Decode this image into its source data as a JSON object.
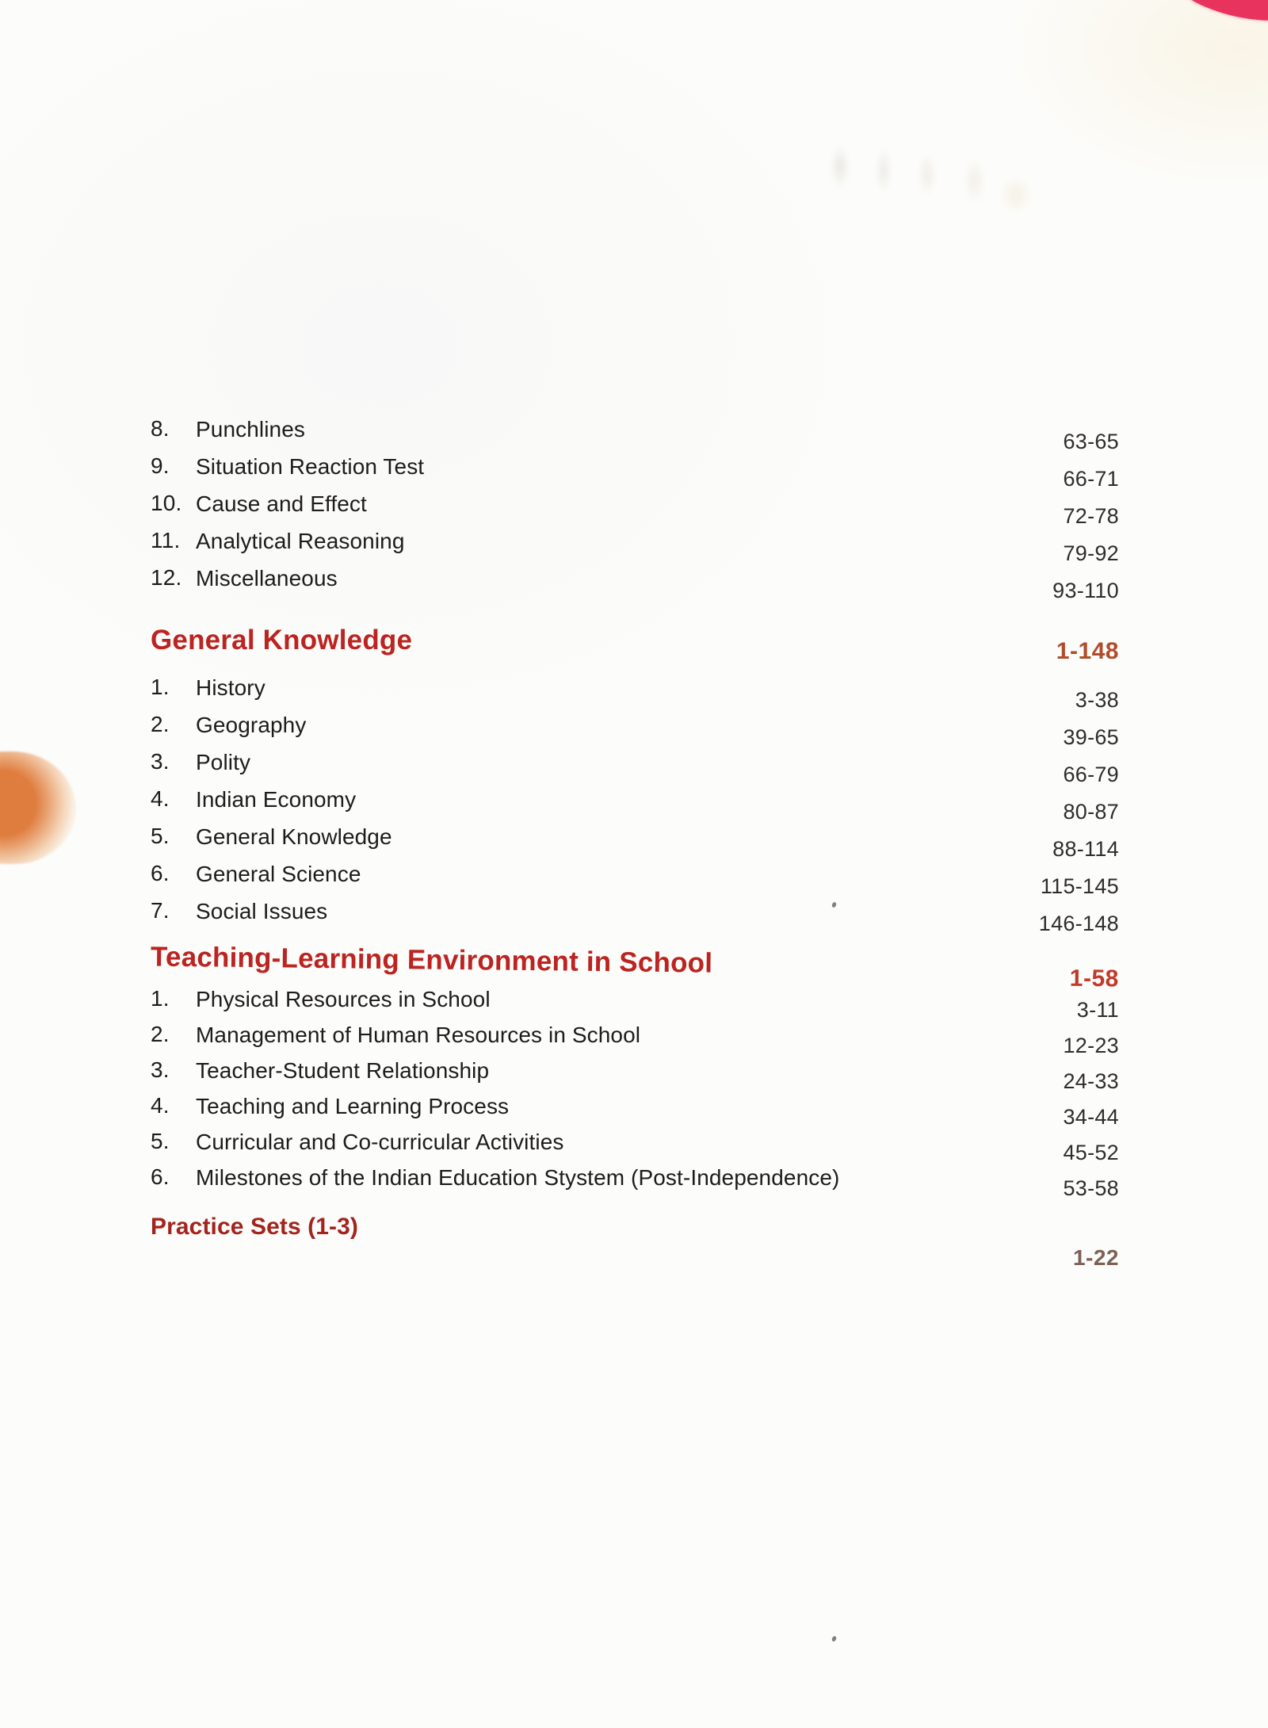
{
  "colors": {
    "paper": "#fcfcfa",
    "entry_text": "#1d1c1a",
    "entry_pages": "#2f2d2a",
    "heading_red": "#bb2420",
    "practice_heading_red": "#a3241d",
    "range_gk": "#b14c2a",
    "range_teaching": "#c03a2b",
    "range_practice": "#7e6156",
    "pink_corner_mark": "#e8335f",
    "orange_stain": "#dd7634"
  },
  "sections": [
    {
      "heading": null,
      "items": [
        {
          "index": "8.",
          "label": "Punchlines",
          "pages": "63-65"
        },
        {
          "index": "9.",
          "label": "Situation Reaction Test",
          "pages": "66-71"
        },
        {
          "index": "10.",
          "label": "Cause and Effect",
          "pages": "72-78"
        },
        {
          "index": "11.",
          "label": "Analytical Reasoning",
          "pages": "79-92"
        },
        {
          "index": "12.",
          "label": "Miscellaneous",
          "pages": "93-110"
        }
      ]
    },
    {
      "heading": {
        "label": "General Knowledge",
        "pages": "1-148"
      },
      "items": [
        {
          "index": "1.",
          "label": "History",
          "pages": "3-38"
        },
        {
          "index": "2.",
          "label": "Geography",
          "pages": "39-65"
        },
        {
          "index": "3.",
          "label": "Polity",
          "pages": "66-79"
        },
        {
          "index": "4.",
          "label": "Indian Economy",
          "pages": "80-87"
        },
        {
          "index": "5.",
          "label": "General Knowledge",
          "pages": "88-114"
        },
        {
          "index": "6.",
          "label": "General Science",
          "pages": "115-145"
        },
        {
          "index": "7.",
          "label": "Social Issues",
          "pages": "146-148"
        }
      ]
    },
    {
      "heading": {
        "label": "Teaching-Learning Environment in School",
        "pages": "1-58"
      },
      "items": [
        {
          "index": "1.",
          "label": "Physical Resources in School",
          "pages": "3-11"
        },
        {
          "index": "2.",
          "label": "Management of Human Resources in School",
          "pages": "12-23"
        },
        {
          "index": "3.",
          "label": "Teacher-Student Relationship",
          "pages": "24-33"
        },
        {
          "index": "4.",
          "label": "Teaching and Learning Process",
          "pages": "34-44"
        },
        {
          "index": "5.",
          "label": "Curricular and Co-curricular Activities",
          "pages": "45-52"
        },
        {
          "index": "6.",
          "label": "Milestones of the Indian Education Stystem (Post-Independence)",
          "pages": "53-58"
        }
      ]
    },
    {
      "heading": {
        "label": "Practice Sets (1-3)",
        "pages": "1-22"
      },
      "items": []
    }
  ]
}
